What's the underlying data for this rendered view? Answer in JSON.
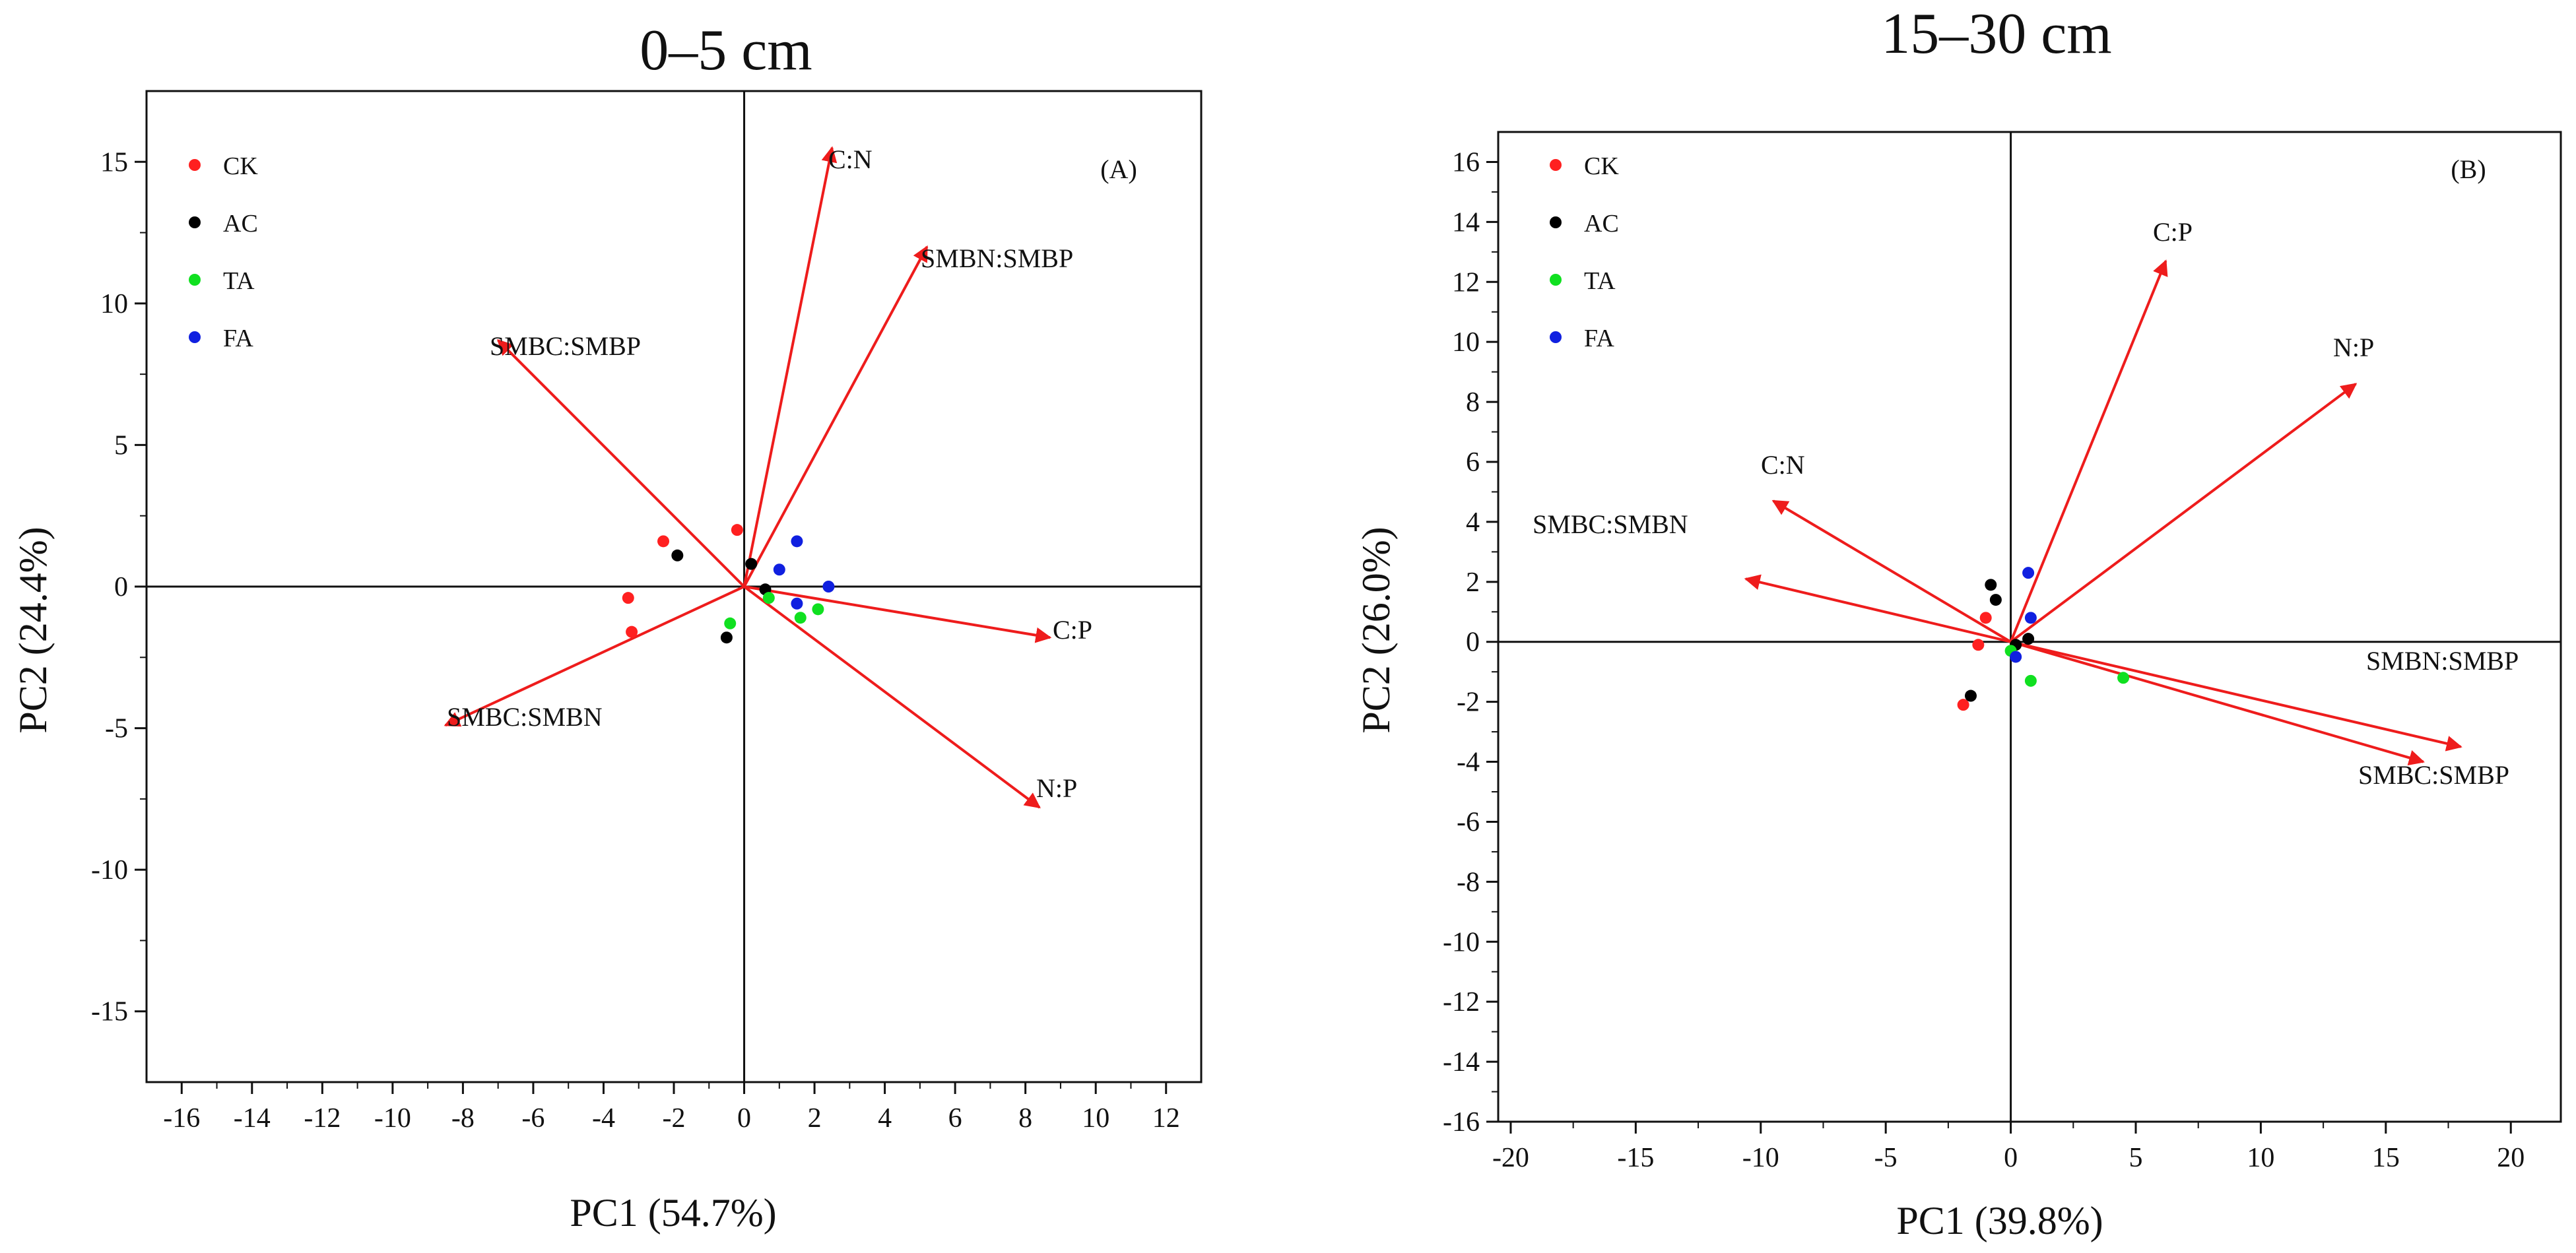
{
  "chart_data": [
    {
      "type": "scatter",
      "title": "0–5 cm",
      "panel_label": "(A)",
      "xlabel": "PC1 (54.7%)",
      "ylabel": "PC2 (24.4%)",
      "xlim": [
        -17,
        13
      ],
      "ylim": [
        -17.5,
        17.5
      ],
      "xticks": [
        -16,
        -14,
        -12,
        -10,
        -8,
        -6,
        -4,
        -2,
        0,
        2,
        4,
        6,
        8,
        10,
        12
      ],
      "yticks": [
        -15,
        -10,
        -5,
        0,
        5,
        10,
        15
      ],
      "legend": [
        {
          "name": "CK",
          "color": "#ff2020"
        },
        {
          "name": "AC",
          "color": "#000000"
        },
        {
          "name": "TA",
          "color": "#10e020"
        },
        {
          "name": "FA",
          "color": "#1020e0"
        }
      ],
      "vectors": [
        {
          "label": "C:N",
          "x": 2.5,
          "y": 15.5
        },
        {
          "label": "SMBN:SMBP",
          "x": 5.2,
          "y": 12.0
        },
        {
          "label": "SMBC:SMBP",
          "x": -7.0,
          "y": 8.7
        },
        {
          "label": "C:P",
          "x": 8.7,
          "y": -1.8
        },
        {
          "label": "N:P",
          "x": 8.4,
          "y": -7.8
        },
        {
          "label": "SMBC:SMBN",
          "x": -8.5,
          "y": -4.9
        }
      ],
      "series": [
        {
          "name": "CK",
          "x": [
            -0.2,
            -2.3,
            -3.3,
            -3.2
          ],
          "y": [
            2.0,
            1.6,
            -0.4,
            -1.6
          ]
        },
        {
          "name": "AC",
          "x": [
            -1.9,
            0.2,
            0.6,
            -0.5
          ],
          "y": [
            1.1,
            0.8,
            -0.1,
            -1.8
          ]
        },
        {
          "name": "TA",
          "x": [
            -0.4,
            0.7,
            1.6,
            2.1
          ],
          "y": [
            -1.3,
            -0.4,
            -1.1,
            -0.8
          ]
        },
        {
          "name": "FA",
          "x": [
            1.5,
            1.0,
            2.4,
            1.5
          ],
          "y": [
            1.6,
            0.6,
            0.0,
            -0.6
          ]
        }
      ]
    },
    {
      "type": "scatter",
      "title": "15–30 cm",
      "panel_label": "(B)",
      "xlabel": "PC1 (39.8%)",
      "ylabel": "PC2 (26.0%)",
      "xlim": [
        -20.5,
        22
      ],
      "ylim": [
        -16,
        17
      ],
      "xticks": [
        -20,
        -15,
        -10,
        -5,
        0,
        5,
        10,
        15,
        20
      ],
      "yticks": [
        -16,
        -14,
        -12,
        -10,
        -8,
        -6,
        -4,
        -2,
        0,
        2,
        4,
        6,
        8,
        10,
        12,
        14,
        16
      ],
      "legend": [
        {
          "name": "CK",
          "color": "#ff2020"
        },
        {
          "name": "AC",
          "color": "#000000"
        },
        {
          "name": "TA",
          "color": "#10e020"
        },
        {
          "name": "FA",
          "color": "#1020e0"
        }
      ],
      "vectors": [
        {
          "label": "C:P",
          "x": 6.2,
          "y": 12.7
        },
        {
          "label": "N:P",
          "x": 13.8,
          "y": 8.6
        },
        {
          "label": "C:N",
          "x": -9.5,
          "y": 4.7
        },
        {
          "label": "SMBC:SMBN",
          "x": -10.6,
          "y": 2.1
        },
        {
          "label": "SMBN:SMBP",
          "x": 18.0,
          "y": -3.5
        },
        {
          "label": "SMBC:SMBP",
          "x": 16.5,
          "y": -4.0
        }
      ],
      "series": [
        {
          "name": "CK",
          "x": [
            -1.0,
            -1.3,
            -1.9
          ],
          "y": [
            0.8,
            -0.1,
            -2.1
          ]
        },
        {
          "name": "AC",
          "x": [
            -0.8,
            -0.6,
            -1.6,
            0.2,
            0.7
          ],
          "y": [
            1.9,
            1.4,
            -1.8,
            -0.1,
            0.1
          ]
        },
        {
          "name": "TA",
          "x": [
            0.0,
            0.8,
            4.5
          ],
          "y": [
            -0.3,
            -1.3,
            -1.2
          ]
        },
        {
          "name": "FA",
          "x": [
            0.7,
            0.8,
            0.2
          ],
          "y": [
            2.3,
            0.8,
            -0.5
          ]
        }
      ]
    }
  ]
}
